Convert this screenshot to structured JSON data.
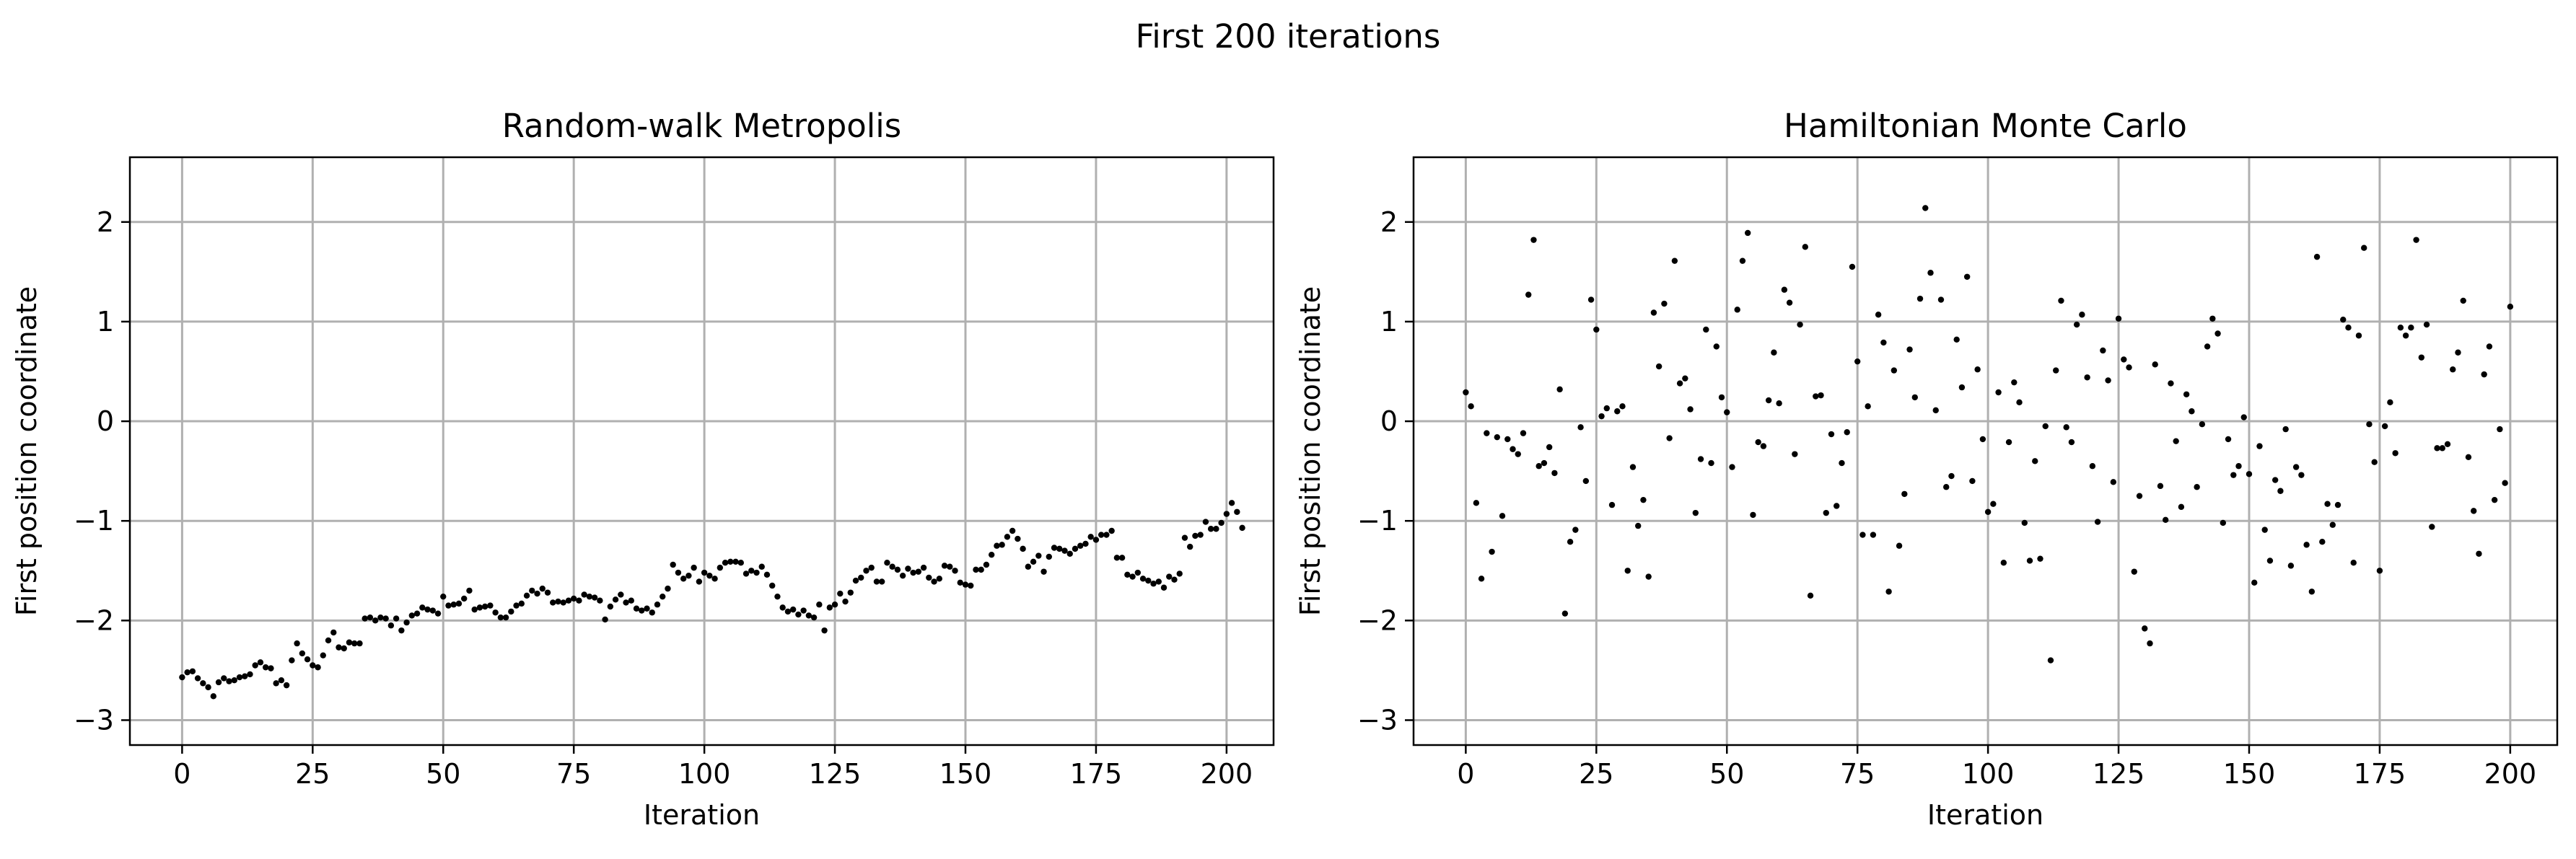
{
  "figure": {
    "suptitle": "First 200 iterations"
  },
  "chart_data": [
    {
      "type": "scatter",
      "title": "Random-walk Metropolis",
      "xlabel": "Iteration",
      "ylabel": "First position coordinate",
      "xlim": [
        -10,
        209
      ],
      "ylim": [
        -3.25,
        2.65
      ],
      "xticks": [
        0,
        25,
        50,
        75,
        100,
        125,
        150,
        175,
        200
      ],
      "yticks": [
        -3,
        -2,
        -1,
        0,
        1,
        2
      ],
      "ytick_labels": [
        "−3",
        "−2",
        "−1",
        "0",
        "1",
        "2"
      ],
      "grid": true,
      "marker_color": "#000000",
      "x_start": 0,
      "values": [
        -2.57,
        -2.52,
        -2.51,
        -2.58,
        -2.63,
        -2.67,
        -2.76,
        -2.62,
        -2.58,
        -2.61,
        -2.6,
        -2.57,
        -2.56,
        -2.54,
        -2.45,
        -2.42,
        -2.47,
        -2.48,
        -2.63,
        -2.6,
        -2.65,
        -2.4,
        -2.23,
        -2.33,
        -2.39,
        -2.45,
        -2.47,
        -2.35,
        -2.2,
        -2.12,
        -2.27,
        -2.28,
        -2.22,
        -2.23,
        -2.23,
        -1.98,
        -1.97,
        -2.0,
        -1.97,
        -1.98,
        -2.05,
        -1.98,
        -2.1,
        -2.02,
        -1.95,
        -1.93,
        -1.87,
        -1.89,
        -1.9,
        -1.93,
        -1.76,
        -1.85,
        -1.84,
        -1.83,
        -1.78,
        -1.7,
        -1.89,
        -1.87,
        -1.86,
        -1.85,
        -1.92,
        -1.97,
        -1.97,
        -1.91,
        -1.85,
        -1.83,
        -1.75,
        -1.7,
        -1.73,
        -1.68,
        -1.72,
        -1.82,
        -1.81,
        -1.82,
        -1.8,
        -1.78,
        -1.8,
        -1.74,
        -1.76,
        -1.77,
        -1.8,
        -1.99,
        -1.86,
        -1.79,
        -1.74,
        -1.82,
        -1.8,
        -1.88,
        -1.9,
        -1.88,
        -1.92,
        -1.84,
        -1.76,
        -1.68,
        -1.44,
        -1.52,
        -1.58,
        -1.55,
        -1.47,
        -1.61,
        -1.52,
        -1.55,
        -1.58,
        -1.47,
        -1.42,
        -1.41,
        -1.41,
        -1.42,
        -1.53,
        -1.5,
        -1.52,
        -1.46,
        -1.54,
        -1.65,
        -1.76,
        -1.87,
        -1.91,
        -1.89,
        -1.94,
        -1.9,
        -1.95,
        -1.97,
        -1.84,
        -2.1,
        -1.87,
        -1.84,
        -1.73,
        -1.81,
        -1.72,
        -1.6,
        -1.57,
        -1.5,
        -1.47,
        -1.61,
        -1.61,
        -1.42,
        -1.46,
        -1.49,
        -1.55,
        -1.48,
        -1.52,
        -1.51,
        -1.47,
        -1.57,
        -1.61,
        -1.58,
        -1.45,
        -1.46,
        -1.5,
        -1.62,
        -1.64,
        -1.65,
        -1.49,
        -1.49,
        -1.44,
        -1.34,
        -1.25,
        -1.24,
        -1.16,
        -1.1,
        -1.18,
        -1.28,
        -1.46,
        -1.41,
        -1.35,
        -1.51,
        -1.36,
        -1.27,
        -1.28,
        -1.3,
        -1.33,
        -1.28,
        -1.25,
        -1.23,
        -1.16,
        -1.19,
        -1.14,
        -1.14,
        -1.1,
        -1.37,
        -1.37,
        -1.54,
        -1.56,
        -1.52,
        -1.58,
        -1.6,
        -1.63,
        -1.61,
        -1.67,
        -1.56,
        -1.59,
        -1.53,
        -1.17,
        -1.26,
        -1.15,
        -1.14,
        -1.01,
        -1.08,
        -1.08,
        -1.02,
        -0.93,
        -0.82,
        -0.91,
        -1.07
      ]
    },
    {
      "type": "scatter",
      "title": "Hamiltonian Monte Carlo",
      "xlabel": "Iteration",
      "ylabel": "First position coordinate",
      "xlim": [
        -10,
        209
      ],
      "ylim": [
        -3.25,
        2.65
      ],
      "xticks": [
        0,
        25,
        50,
        75,
        100,
        125,
        150,
        175,
        200
      ],
      "yticks": [
        -3,
        -2,
        -1,
        0,
        1,
        2
      ],
      "ytick_labels": [
        "−3",
        "−2",
        "−1",
        "0",
        "1",
        "2"
      ],
      "grid": true,
      "marker_color": "#000000",
      "x_start": 0,
      "values": [
        0.29,
        0.15,
        -0.82,
        -1.58,
        -0.12,
        -1.31,
        -0.16,
        -0.95,
        -0.18,
        -0.28,
        -0.33,
        -0.12,
        1.27,
        1.82,
        -0.45,
        -0.42,
        -0.26,
        -0.52,
        0.32,
        -1.93,
        -1.21,
        -1.09,
        -0.06,
        -0.6,
        1.22,
        0.92,
        0.05,
        0.13,
        -0.84,
        0.1,
        0.15,
        -1.5,
        -0.46,
        -1.05,
        -0.79,
        -1.56,
        1.09,
        0.55,
        1.18,
        -0.17,
        1.61,
        0.38,
        0.43,
        0.12,
        -0.92,
        -0.38,
        0.92,
        -0.42,
        0.75,
        0.24,
        0.09,
        -0.46,
        1.12,
        1.61,
        1.89,
        -0.94,
        -0.21,
        -0.25,
        0.21,
        0.69,
        0.18,
        1.32,
        1.19,
        -0.33,
        0.97,
        1.75,
        -1.75,
        0.25,
        0.26,
        -0.92,
        -0.13,
        -0.85,
        -0.42,
        -0.11,
        1.55,
        0.6,
        -1.14,
        0.15,
        -1.14,
        1.07,
        0.79,
        -1.71,
        0.51,
        -1.25,
        -0.73,
        0.72,
        0.24,
        1.23,
        2.14,
        1.49,
        0.11,
        1.22,
        -0.66,
        -0.55,
        0.82,
        0.34,
        1.45,
        -0.6,
        0.52,
        -0.18,
        -0.91,
        -0.83,
        0.29,
        -1.42,
        -0.21,
        0.39,
        0.19,
        -1.02,
        -1.4,
        -0.4,
        -1.38,
        -0.05,
        -2.4,
        0.51,
        1.21,
        -0.06,
        -0.21,
        0.97,
        1.07,
        0.44,
        -0.45,
        -1.01,
        0.71,
        0.41,
        -0.61,
        1.03,
        0.62,
        0.54,
        -1.51,
        -0.75,
        -2.08,
        -2.23,
        0.57,
        -0.65,
        -0.99,
        0.38,
        -0.2,
        -0.86,
        0.27,
        0.1,
        -0.66,
        -0.03,
        0.75,
        1.03,
        0.88,
        -1.02,
        -0.18,
        -0.54,
        -0.45,
        0.04,
        -0.53,
        -1.62,
        -0.25,
        -1.09,
        -1.4,
        -0.59,
        -0.7,
        -0.08,
        -1.45,
        -0.46,
        -0.54,
        -1.24,
        -1.71,
        1.65,
        -1.21,
        -0.83,
        -1.04,
        -0.84,
        1.02,
        0.94,
        -1.42,
        0.86,
        1.74,
        -0.03,
        -0.41,
        -1.5,
        -0.05,
        0.19,
        -0.32,
        0.94,
        0.86,
        0.94,
        1.82,
        0.64,
        0.97,
        -1.06,
        -0.27,
        -0.27,
        -0.23,
        0.52,
        0.69,
        1.21,
        -0.36,
        -0.9,
        -1.33,
        0.47,
        0.75,
        -0.79,
        -0.08,
        -0.62,
        1.15
      ]
    }
  ]
}
